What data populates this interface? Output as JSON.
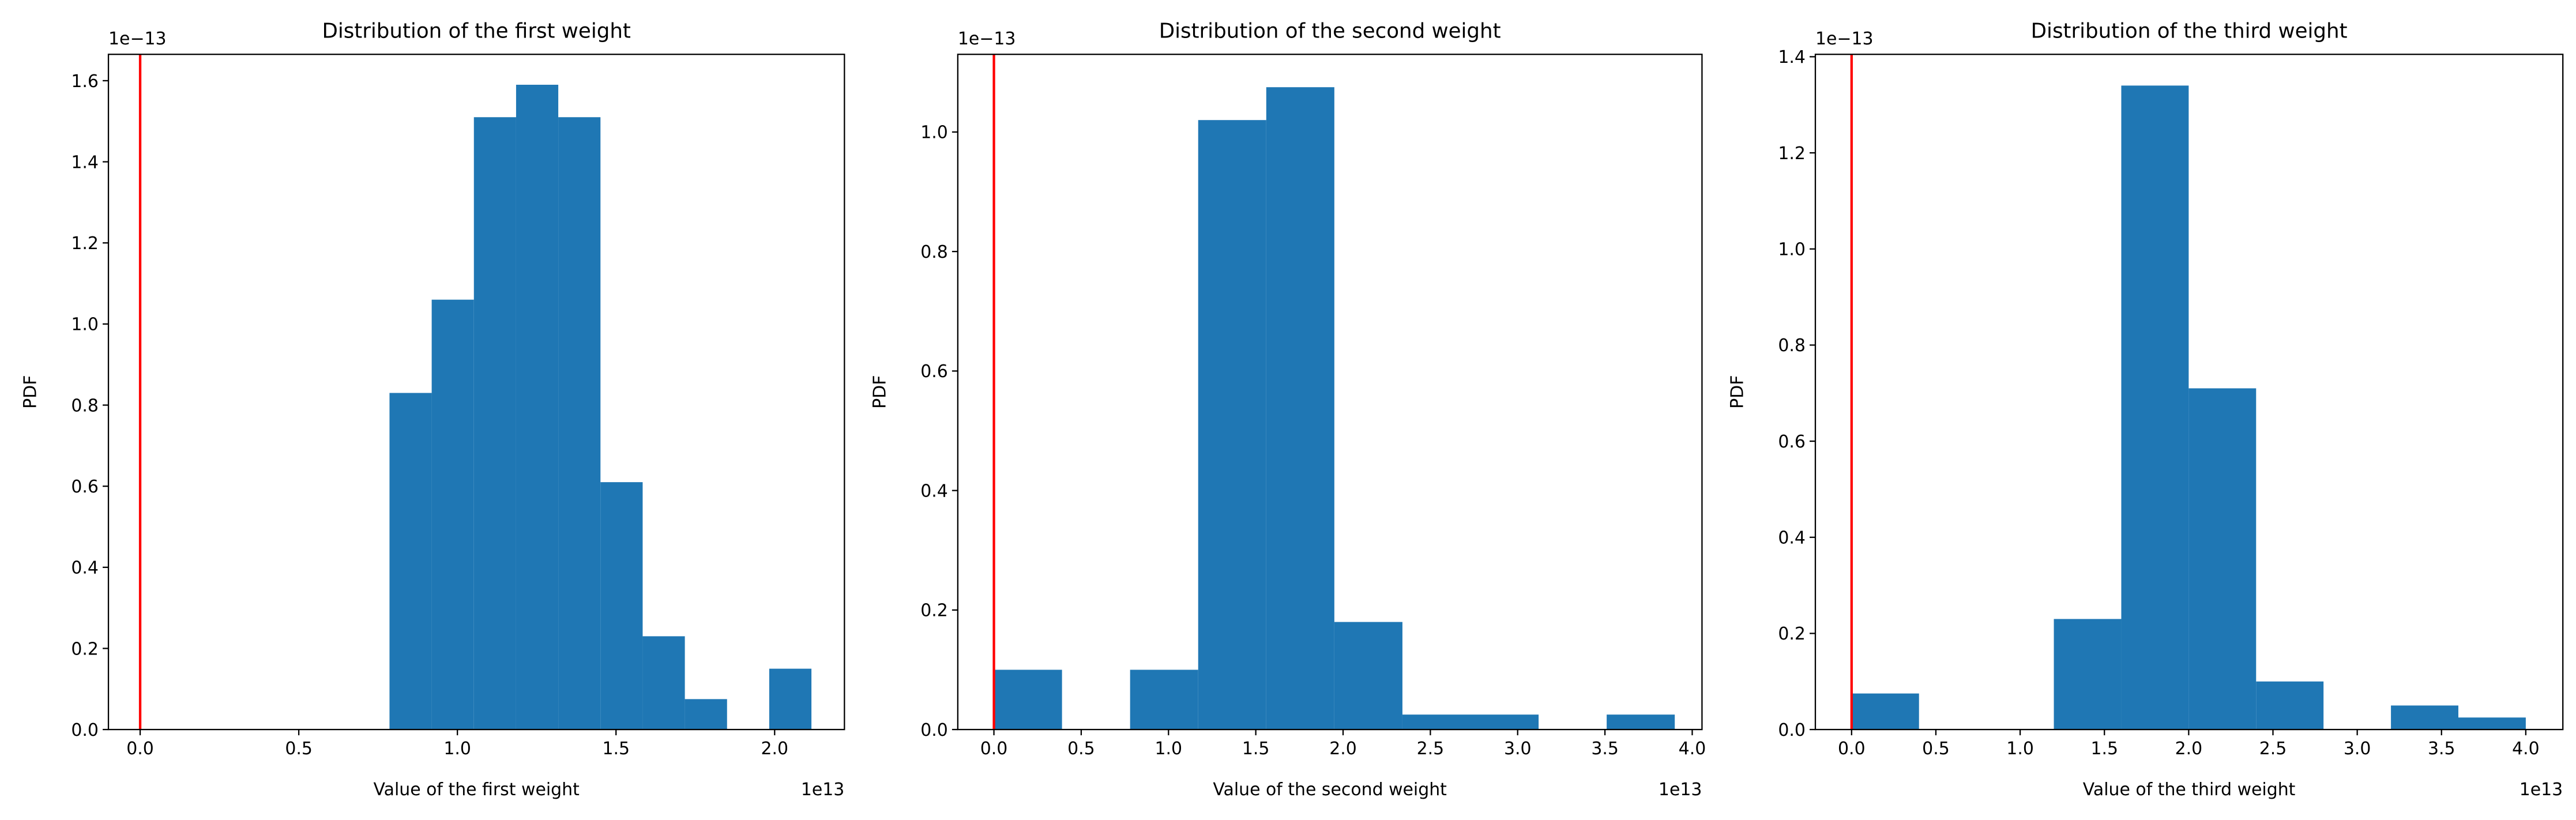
{
  "chart_data": [
    {
      "type": "histogram",
      "title": "Distribution of the first weight",
      "xlabel": "Value of the first weight",
      "ylabel": "PDF",
      "x_offset_label": "1e13",
      "y_offset_label": "1e−13",
      "color": "#1f77b4",
      "bins": [
        0.786,
        0.919,
        1.052,
        1.185,
        1.318,
        1.451,
        1.584,
        1.717,
        1.85,
        1.983,
        2.116
      ],
      "values": [
        0.83,
        1.06,
        1.51,
        1.59,
        1.51,
        0.61,
        0.23,
        0.075,
        0,
        0.15
      ],
      "vline": {
        "x": 0,
        "color": "red"
      },
      "xlim": [
        -0.1,
        2.22
      ],
      "ylim": [
        0,
        1.665
      ],
      "xticks": [
        {
          "value": 0,
          "label": "0.0"
        },
        0.5,
        {
          "value": 1,
          "label": "1.0"
        },
        1.5,
        {
          "value": 2,
          "label": "2.0"
        }
      ],
      "yticks": [
        {
          "value": 0,
          "label": "0.0"
        },
        0.2,
        0.4,
        0.6,
        0.8,
        {
          "value": 1,
          "label": "1.0"
        },
        1.2,
        1.4,
        1.6
      ]
    },
    {
      "type": "histogram",
      "title": "Distribution of the second weight",
      "xlabel": "Value of the second weight",
      "ylabel": "PDF",
      "x_offset_label": "1e13",
      "y_offset_label": "1e−13",
      "color": "#1f77b4",
      "bins": [
        0,
        0.39,
        0.78,
        1.17,
        1.56,
        1.95,
        2.34,
        2.73,
        3.12,
        3.51,
        3.9
      ],
      "values": [
        0.1,
        0,
        0.1,
        1.02,
        1.075,
        0.18,
        0.025,
        0.025,
        0,
        0.025
      ],
      "vline": {
        "x": 0,
        "color": "red"
      },
      "xlim": [
        -0.207,
        4.056
      ],
      "ylim": [
        0,
        1.13
      ],
      "xticks": [
        {
          "value": 0,
          "label": "0.0"
        },
        0.5,
        {
          "value": 1,
          "label": "1.0"
        },
        1.5,
        {
          "value": 2,
          "label": "2.0"
        },
        2.5,
        {
          "value": 3,
          "label": "3.0"
        },
        3.5,
        {
          "value": 4,
          "label": "4.0"
        }
      ],
      "yticks": [
        {
          "value": 0,
          "label": "0.0"
        },
        0.2,
        0.4,
        0.6,
        0.8,
        {
          "value": 1,
          "label": "1.0"
        }
      ]
    },
    {
      "type": "histogram",
      "title": "Distribution of the third weight",
      "xlabel": "Value of the third weight",
      "ylabel": "PDF",
      "x_offset_label": "1e13",
      "y_offset_label": "1e−13",
      "color": "#1f77b4",
      "bins": [
        0,
        0.4,
        0.8,
        1.2,
        1.6,
        2.0,
        2.4,
        2.8,
        3.2,
        3.6,
        4.0
      ],
      "values": [
        0.075,
        0,
        0,
        0.23,
        1.34,
        0.71,
        0.1,
        0,
        0.05,
        0.025
      ],
      "vline": {
        "x": 0,
        "color": "red"
      },
      "xlim": [
        -0.215,
        4.22
      ],
      "ylim": [
        0,
        1.405
      ],
      "xticks": [
        {
          "value": 0,
          "label": "0.0"
        },
        0.5,
        {
          "value": 1,
          "label": "1.0"
        },
        1.5,
        {
          "value": 2,
          "label": "2.0"
        },
        2.5,
        {
          "value": 3,
          "label": "3.0"
        },
        3.5,
        {
          "value": 4,
          "label": "4.0"
        }
      ],
      "yticks": [
        {
          "value": 0,
          "label": "0.0"
        },
        0.2,
        0.4,
        0.6,
        0.8,
        {
          "value": 1,
          "label": "1.0"
        },
        1.2,
        1.4
      ]
    }
  ]
}
